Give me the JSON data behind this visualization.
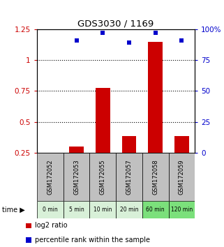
{
  "title": "GDS3030 / 1169",
  "samples": [
    "GSM172052",
    "GSM172053",
    "GSM172055",
    "GSM172057",
    "GSM172058",
    "GSM172059"
  ],
  "time_labels": [
    "0 min",
    "5 min",
    "10 min",
    "20 min",
    "60 min",
    "120 min"
  ],
  "log2_ratio": [
    null,
    0.3,
    0.775,
    0.385,
    1.145,
    0.385
  ],
  "percentile": [
    null,
    91,
    97,
    89,
    97,
    91
  ],
  "ylim_left": [
    0.25,
    1.25
  ],
  "ylim_right": [
    0,
    100
  ],
  "yticks_left": [
    0.25,
    0.5,
    0.75,
    1.0,
    1.25
  ],
  "yticks_right": [
    0,
    25,
    50,
    75,
    100
  ],
  "ytick_labels_left": [
    "0.25",
    "0.5",
    "0.75",
    "1",
    "1.25"
  ],
  "ytick_labels_right": [
    "0",
    "25",
    "50",
    "75",
    "100%"
  ],
  "bar_color": "#cc0000",
  "dot_color": "#0000cc",
  "label_area_color": "#c0c0c0",
  "time_area_colors": [
    "#d8f0d8",
    "#d8f0d8",
    "#d8f0d8",
    "#d8f0d8",
    "#7be07b",
    "#7be07b"
  ],
  "legend_log2": "log2 ratio",
  "legend_percentile": "percentile rank within the sample"
}
